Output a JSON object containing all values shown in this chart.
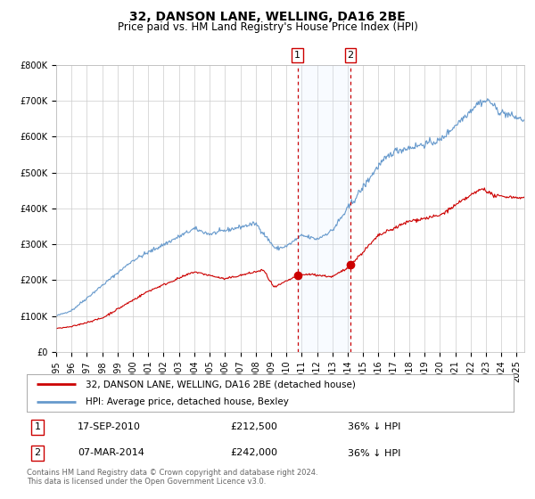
{
  "title": "32, DANSON LANE, WELLING, DA16 2BE",
  "subtitle": "Price paid vs. HM Land Registry's House Price Index (HPI)",
  "ylim": [
    0,
    800000
  ],
  "xlim_start": 1995.0,
  "xlim_end": 2025.5,
  "yticks": [
    0,
    100000,
    200000,
    300000,
    400000,
    500000,
    600000,
    700000,
    800000
  ],
  "ytick_labels": [
    "£0",
    "£100K",
    "£200K",
    "£300K",
    "£400K",
    "£500K",
    "£600K",
    "£700K",
    "£800K"
  ],
  "red_line_color": "#cc0000",
  "blue_line_color": "#6699cc",
  "marker_color": "#cc0000",
  "vline_color": "#cc0000",
  "shade_color": "#ddeeff",
  "event1_x": 2010.72,
  "event2_x": 2014.18,
  "event1_y": 212500,
  "event2_y": 242000,
  "event1_label": "17-SEP-2010",
  "event2_label": "07-MAR-2014",
  "event1_price": "£212,500",
  "event2_price": "£242,000",
  "event1_pct": "36% ↓ HPI",
  "event2_pct": "36% ↓ HPI",
  "legend_label_red": "32, DANSON LANE, WELLING, DA16 2BE (detached house)",
  "legend_label_blue": "HPI: Average price, detached house, Bexley",
  "footer": "Contains HM Land Registry data © Crown copyright and database right 2024.\nThis data is licensed under the Open Government Licence v3.0.",
  "title_fontsize": 10,
  "subtitle_fontsize": 8.5,
  "tick_fontsize": 7,
  "grid_color": "#cccccc",
  "background_color": "#ffffff",
  "box_color": "#cc0000"
}
